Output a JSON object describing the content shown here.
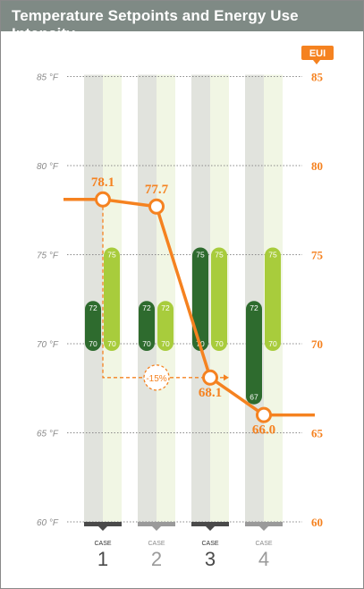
{
  "title": "Temperature Setpoints and Energy Use Intensity",
  "colors": {
    "title_bg": "#7f8a85",
    "orange": "#f58220",
    "heat_dark": "#2e6b2e",
    "cool_light": "#a8cc3c",
    "col_dark_bg": "#e1e3dd",
    "col_light_bg": "#f1f6e4",
    "axis_gray": "#8a8a8a",
    "base_dark": "#4a4a4a",
    "base_light": "#9a9a9a"
  },
  "chart_data": {
    "type": "bar",
    "categories": [
      "1",
      "2",
      "3",
      "4"
    ],
    "case_label": "CASE",
    "left_axis": {
      "range": [
        60,
        85
      ],
      "ticks": [
        85,
        80,
        75,
        70,
        65,
        60
      ],
      "tick_labels": [
        "85 °F",
        "80 °F",
        "75 °F",
        "70 °F",
        "65 °F",
        "60 °F"
      ]
    },
    "right_axis": {
      "label": "EUI",
      "range": [
        60,
        85
      ],
      "ticks": [
        85,
        80,
        75,
        70,
        65,
        60
      ],
      "tick_labels": [
        "85",
        "80",
        "75",
        "70",
        "65",
        "60"
      ]
    },
    "setpoints": [
      {
        "heating": [
          70,
          72
        ],
        "cooling": [
          70,
          75
        ]
      },
      {
        "heating": [
          70,
          72
        ],
        "cooling": [
          70,
          72
        ]
      },
      {
        "heating": [
          70,
          75
        ],
        "cooling": [
          70,
          75
        ]
      },
      {
        "heating": [
          67,
          72
        ],
        "cooling": [
          70,
          75
        ]
      }
    ],
    "eui": {
      "values": [
        78.1,
        77.7,
        68.1,
        66.0
      ],
      "labels": [
        "78.1",
        "77.7",
        "68.1",
        "66.0"
      ]
    },
    "annotation": {
      "text": "-15%",
      "from_case": 1,
      "to_case": 3
    }
  }
}
